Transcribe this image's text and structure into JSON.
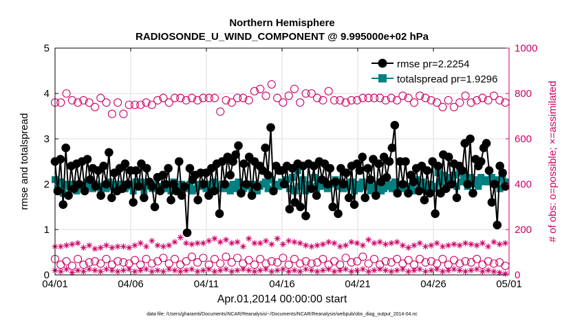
{
  "chart_data": {
    "type": "line",
    "title": "Northern Hemisphere",
    "subtitle": "RADIOSONDE_U_WIND_COMPONENT @ 9.995000e+02 hPa",
    "xlabel": "Apr.01,2014 00:00:00 start",
    "ylabel_left": "rmse and totalspread",
    "ylabel_right": "# of obs: o=possible; ×=assimilated",
    "footnote": "data file: /Users/gharamti/Documents/NCAR/Reanalysis/~/Documents/NCAR/Reanalysis/webpub/obs_diag_output_2014-04.nc",
    "xlim": [
      0,
      30
    ],
    "ylim_left": [
      0,
      5
    ],
    "ylim_right": [
      0,
      1000
    ],
    "x_ticks": [
      0,
      5,
      10,
      15,
      20,
      25,
      30
    ],
    "x_tick_labels": [
      "04/01",
      "04/06",
      "04/11",
      "04/16",
      "04/21",
      "04/26",
      "05/01"
    ],
    "y_left_ticks": [
      "0",
      "1",
      "2",
      "3",
      "4",
      "5"
    ],
    "y_right_ticks": [
      "0",
      "200",
      "400",
      "600",
      "800",
      "1000"
    ],
    "colors": {
      "rmse": "#000000",
      "totalspread": "#008080",
      "obs": "#cc0066",
      "grid": "#dddddd"
    },
    "legend_position": "top-right",
    "series": [
      {
        "name": "rmse",
        "legend_label": "rmse pr=2.2254",
        "axis": "left",
        "values": [
          2.5,
          1.85,
          2.55,
          1.55,
          2.8,
          1.75,
          2.4,
          1.9,
          2.45,
          2.0,
          2.5,
          1.85,
          2.55,
          2.1,
          2.35,
          1.95,
          2.3,
          1.75,
          2.4,
          2.0,
          2.7,
          1.7,
          2.25,
          1.85,
          2.35,
          1.9,
          2.45,
          2.0,
          2.3,
          1.6,
          2.3,
          1.95,
          2.45,
          1.7,
          2.35,
          2.05,
          1.95,
          1.5,
          2.15,
          1.85,
          2.2,
          2.0,
          2.35,
          1.65,
          2.0,
          1.85,
          2.5,
          1.75,
          1.95,
          0.93,
          2.35,
          2.1,
          2.2,
          1.65,
          2.25,
          2.0,
          2.25,
          1.75,
          2.35,
          1.85,
          2.45,
          1.35,
          2.5,
          2.0,
          2.6,
          2.2,
          2.5,
          2.65,
          2.85,
          1.8,
          2.45,
          2.0,
          2.6,
          1.75,
          2.5,
          1.95,
          2.4,
          2.3,
          2.8,
          2.2,
          3.25,
          1.85,
          2.4,
          2.3,
          2.3,
          2.0,
          2.4,
          1.45,
          2.35,
          1.6,
          2.45,
          1.5,
          2.4,
          1.3,
          2.45,
          1.9,
          2.4,
          1.75,
          2.5,
          2.1,
          2.45,
          2.0,
          2.35,
          1.5,
          2.05,
          1.35,
          2.35,
          2.0,
          2.25,
          1.7,
          2.4,
          1.55,
          2.45,
          2.3,
          2.6,
          1.7,
          2.35,
          2.1,
          2.55,
          1.75,
          2.45,
          2.05,
          2.6,
          2.15,
          2.5,
          2.8,
          3.3,
          1.8,
          2.5,
          2.0,
          2.5,
          1.8,
          2.2,
          2.05,
          2.35,
          1.85,
          2.4,
          1.65,
          2.3,
          1.8,
          2.5,
          1.35,
          2.4,
          1.8,
          2.65,
          1.9,
          2.6,
          2.0,
          2.45,
          1.7,
          2.4,
          2.3,
          2.9,
          2.0,
          3.0,
          1.8,
          2.55,
          2.4,
          2.5,
          2.8,
          2.9,
          2.3,
          1.6,
          2.0,
          1.1,
          2.4,
          2.25,
          1.95
        ],
        "x_end": 29.75
      },
      {
        "name": "totalspread",
        "legend_label": "totalspread pr=1.9296",
        "axis": "left",
        "values": [
          2.1,
          1.9,
          2.05,
          1.8,
          2.0,
          1.95,
          1.9,
          2.0,
          1.85,
          1.95,
          1.95,
          1.9,
          2.05,
          1.95,
          1.9,
          2.0,
          1.95,
          1.85,
          1.95,
          1.9,
          2.05,
          1.95,
          2.0,
          1.9,
          1.95,
          2.0,
          1.9,
          1.95,
          2.0,
          1.85,
          2.05,
          1.95,
          2.05,
          1.85,
          1.95,
          2.0,
          1.9,
          2.0,
          1.9,
          1.95,
          1.95,
          1.9,
          2.0,
          1.85,
          2.05,
          1.95,
          1.9,
          2.0,
          1.95,
          1.9,
          2.0,
          1.85,
          1.9,
          2.0,
          1.95,
          1.95,
          1.9,
          2.0,
          1.95,
          2.05,
          1.9,
          1.95,
          2.0,
          1.9,
          1.95,
          1.85,
          2.0,
          1.9,
          2.05,
          1.95,
          1.9,
          2.0,
          1.95,
          1.8,
          2.0,
          1.85,
          1.95,
          2.0,
          2.05,
          1.9,
          2.1,
          1.85,
          2.0,
          1.95,
          2.05,
          2.0,
          2.1,
          1.9,
          2.15,
          1.85,
          2.3,
          1.95,
          2.1,
          1.85,
          2.0,
          1.95,
          2.15,
          1.9,
          2.0,
          1.95,
          2.05,
          1.9,
          2.0,
          2.0,
          2.1,
          1.95,
          2.05,
          1.9,
          2.0,
          1.95,
          2.05,
          1.85,
          2.0,
          1.9,
          2.05,
          1.95,
          2.0,
          1.85,
          1.95,
          1.9,
          2.0,
          1.85,
          1.9,
          1.95,
          2.0,
          1.9,
          2.05,
          1.95,
          2.0,
          1.9,
          1.95,
          1.85,
          1.95,
          1.85,
          2.1,
          1.9,
          2.05,
          1.95,
          1.9,
          2.0,
          1.95,
          1.9,
          2.25,
          2.05,
          2.2,
          1.95,
          2.15,
          2.05,
          2.2,
          1.95,
          2.25,
          2.05,
          2.2,
          1.95,
          2.15,
          2.0,
          2.1,
          1.95,
          2.15,
          2.05,
          2.1,
          2.05,
          2.15,
          2.05,
          2.1,
          1.9,
          2.15,
          2.05
        ],
        "x_end": 29.75
      },
      {
        "name": "possible (main)",
        "axis": "right",
        "marker": "open-circle",
        "values": [
          760,
          760,
          800,
          770,
          760,
          770,
          760,
          740,
          780,
          760,
          710,
          760,
          710,
          750,
          750,
          750,
          760,
          750,
          770,
          780,
          760,
          780,
          780,
          770,
          780,
          770,
          780,
          780,
          780,
          720,
          770,
          760,
          780,
          780,
          770,
          810,
          820,
          790,
          840,
          780,
          760,
          790,
          820,
          760,
          800,
          800,
          780,
          770,
          810,
          770,
          770,
          760,
          770,
          770,
          780,
          780,
          780,
          780,
          770,
          780,
          770,
          790,
          780,
          760,
          790,
          780,
          770,
          760,
          740,
          770,
          740,
          760,
          790,
          760,
          770,
          780,
          770,
          790,
          770,
          760
        ],
        "x_end": 29.75
      },
      {
        "name": "assimilated (main)",
        "axis": "right",
        "marker": "asterisk",
        "values": [
          125,
          125,
          130,
          135,
          140,
          120,
          130,
          115,
          120,
          130,
          120,
          125,
          125,
          120,
          130,
          140,
          125,
          150,
          130,
          125,
          130,
          145,
          165,
          140,
          135,
          140,
          140,
          150,
          160,
          145,
          155,
          140,
          145,
          125,
          160,
          140,
          140,
          150,
          135,
          160,
          135,
          150,
          145,
          140,
          130,
          125,
          130,
          135,
          145,
          140,
          125,
          130,
          145,
          140,
          130,
          155,
          140,
          145,
          135,
          140,
          145,
          130,
          120,
          130,
          140,
          125,
          130,
          140,
          125,
          130,
          135,
          130,
          140,
          135,
          130,
          140,
          125,
          145,
          135,
          140
        ],
        "x_end": 29.75
      },
      {
        "name": "possible (low)",
        "axis": "right",
        "marker": "open-circle",
        "values": [
          70,
          45,
          60,
          40,
          70,
          45,
          55,
          60,
          50,
          70,
          45,
          60,
          55,
          50,
          65,
          45,
          70,
          50,
          60,
          75,
          50,
          70,
          45,
          60,
          80,
          55,
          75,
          45,
          70,
          50,
          80,
          55,
          75,
          50,
          65,
          45,
          70,
          50,
          60,
          55,
          75,
          45,
          70,
          50,
          60,
          50,
          55,
          70,
          45,
          60,
          45,
          75,
          55,
          60,
          80,
          50,
          70,
          45,
          60,
          55,
          70,
          50,
          65,
          45,
          70,
          55,
          60,
          50,
          70,
          45,
          65,
          50,
          60,
          55,
          70,
          45,
          60,
          50,
          55,
          40
        ],
        "x_end": 29.75
      },
      {
        "name": "assimilated (low)",
        "axis": "right",
        "marker": "asterisk",
        "values": [
          20,
          15,
          25,
          10,
          20,
          15,
          25,
          20,
          15,
          25,
          20,
          15,
          20,
          25,
          15,
          20,
          25,
          15,
          20,
          15,
          25,
          20,
          15,
          20,
          25,
          15,
          20,
          25,
          15,
          20,
          25,
          15,
          20,
          25,
          20,
          15,
          20,
          25,
          15,
          20,
          25,
          15,
          20,
          15,
          25,
          20,
          15,
          20,
          25,
          15,
          20,
          25,
          15,
          20,
          25,
          15,
          20,
          25,
          20,
          15,
          20,
          25,
          15,
          20,
          25,
          15,
          20,
          25,
          15,
          20,
          25,
          20,
          15,
          20,
          25,
          15,
          20,
          15,
          10,
          5
        ],
        "x_end": 29.75
      }
    ]
  }
}
